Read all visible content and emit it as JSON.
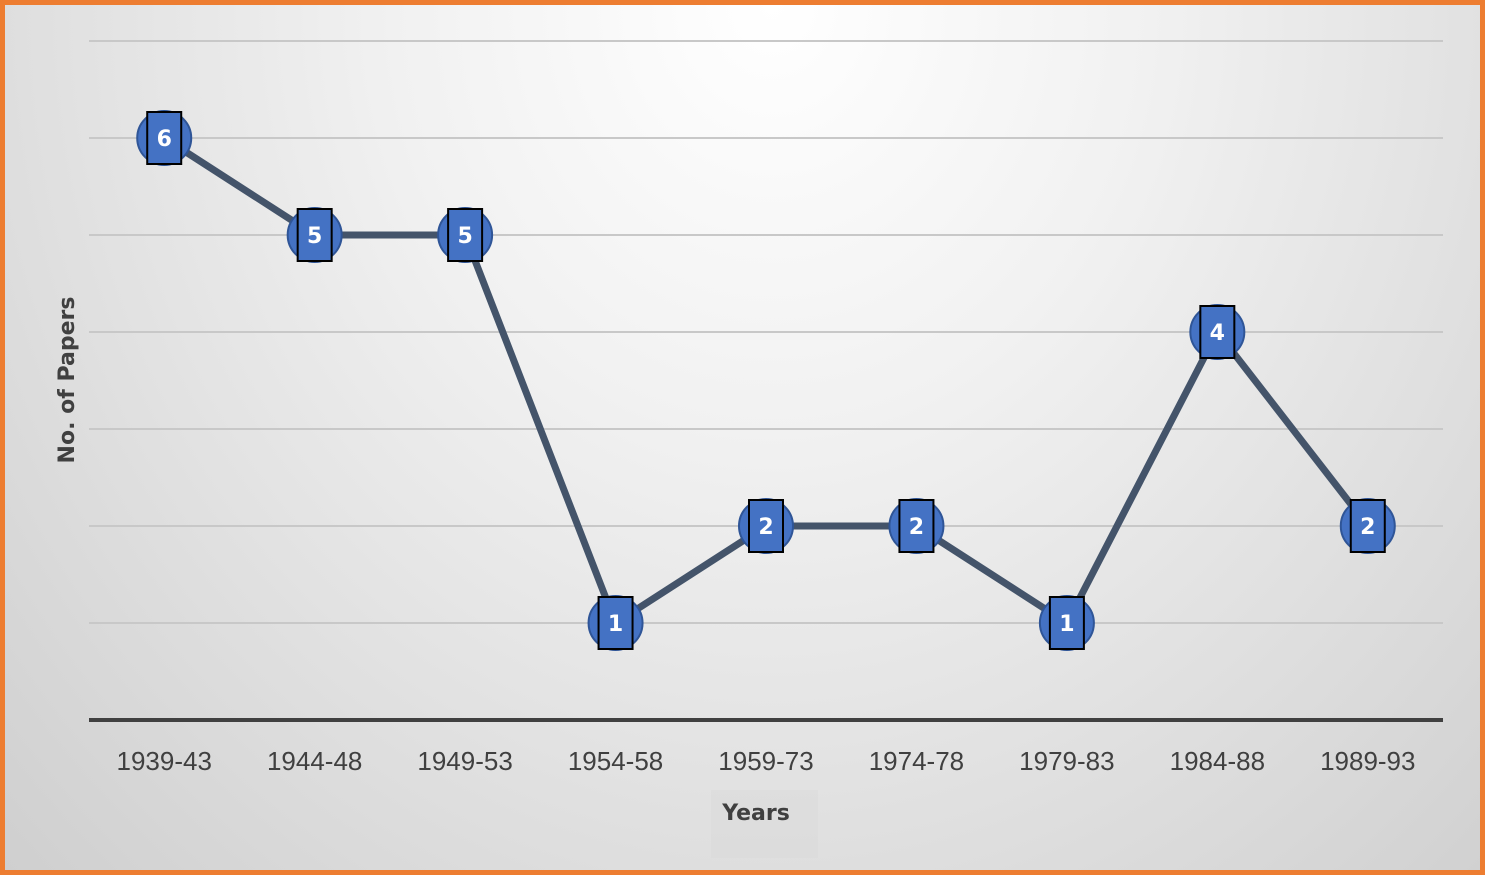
{
  "chart_data": {
    "type": "line",
    "categories": [
      "1939-43",
      "1944-48",
      "1949-53",
      "1954-58",
      "1959-73",
      "1974-78",
      "1979-83",
      "1984-88",
      "1989-93"
    ],
    "values": [
      6,
      5,
      5,
      1,
      2,
      2,
      1,
      4,
      2
    ],
    "title": "",
    "xlabel": "Years",
    "ylabel": "No. of Papers",
    "ylim": [
      0,
      7
    ],
    "grid": true,
    "legend": "none",
    "colors": {
      "line": "#44546A",
      "marker": "#4472C4",
      "label_box": "#4472C4",
      "frame": "#ED7D31",
      "grid": "#c8c8c8",
      "axis": "#404040"
    }
  }
}
